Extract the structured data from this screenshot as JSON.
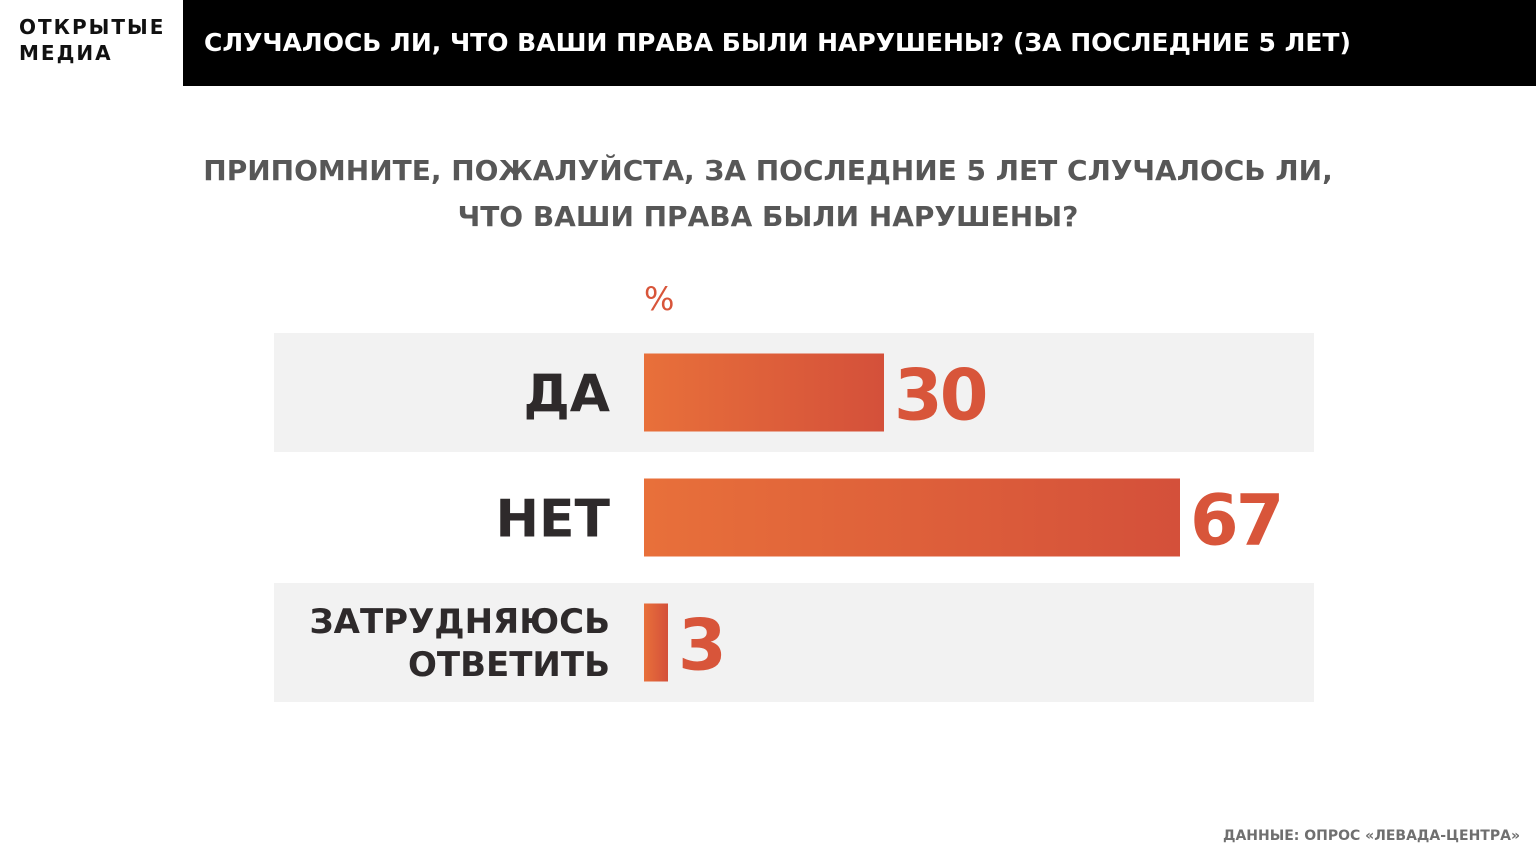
{
  "logo": {
    "line1": "ОТКРЫТЫЕ",
    "line2": "МЕДИА"
  },
  "header": {
    "title": "СЛУЧАЛОСЬ ЛИ, ЧТО ВАШИ ПРАВА БЫЛИ НАРУШЕНЫ? (ЗА ПОСЛЕДНИЕ 5 ЛЕТ)"
  },
  "question": {
    "line1": "ПРИПОМНИТЕ, ПОЖАЛУЙСТА, ЗА ПОСЛЕДНИЕ 5 ЛЕТ СЛУЧАЛОСЬ ЛИ,",
    "line2": "ЧТО ВАШИ ПРАВА БЫЛИ НАРУШЕНЫ?"
  },
  "colors": {
    "bar_start": "#e8703a",
    "bar_end": "#d4503a",
    "value_text": "#d8553a",
    "label_text": "#2e2a2b",
    "row_band": "#f2f2f2",
    "header_bg": "#000000"
  },
  "chart_data": {
    "type": "bar",
    "orientation": "horizontal",
    "unit_label": "%",
    "categories": [
      [
        "ДА"
      ],
      [
        "НЕТ"
      ],
      [
        "ЗАТРУДНЯЮСЬ",
        "ОТВЕТИТЬ"
      ]
    ],
    "values": [
      30,
      67,
      3
    ],
    "xlim": [
      0,
      100
    ],
    "grid": false
  },
  "source": {
    "text": "ДАННЫЕ: ОПРОС «ЛЕВАДА-ЦЕНТРА»"
  }
}
